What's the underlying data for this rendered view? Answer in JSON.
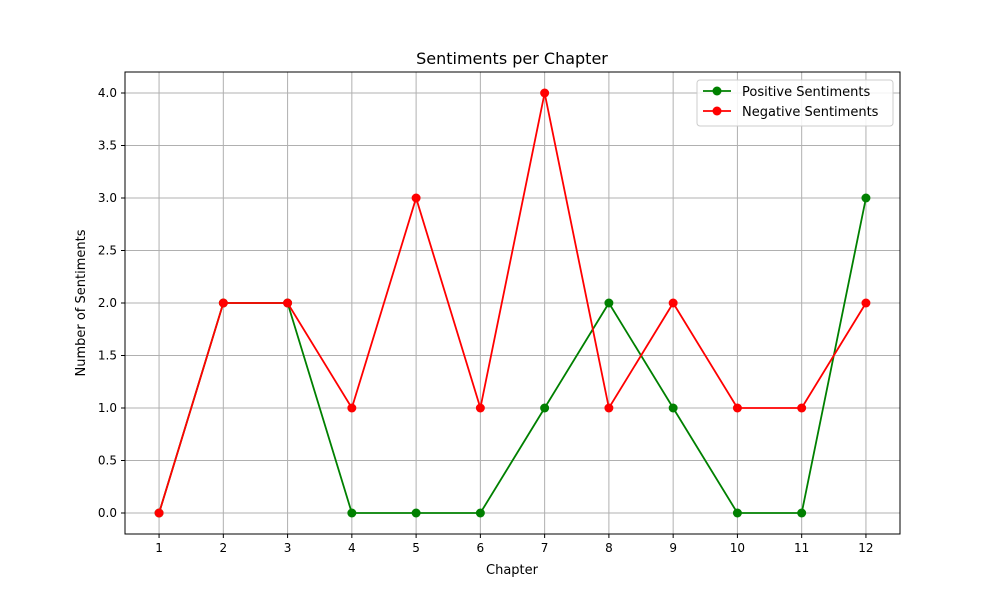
{
  "chart_data": {
    "type": "line",
    "title": "Sentiments per Chapter",
    "xlabel": "Chapter",
    "ylabel": "Number of Sentiments",
    "x": [
      1,
      2,
      3,
      4,
      5,
      6,
      7,
      8,
      9,
      10,
      11,
      12
    ],
    "xticks": [
      "1",
      "2",
      "3",
      "4",
      "5",
      "6",
      "7",
      "8",
      "9",
      "10",
      "11",
      "12"
    ],
    "yticks": [
      "0.0",
      "0.5",
      "1.0",
      "1.5",
      "2.0",
      "2.5",
      "3.0",
      "3.5",
      "4.0"
    ],
    "xlim": [
      0.47,
      12.53
    ],
    "ylim": [
      -0.2,
      4.2
    ],
    "grid": true,
    "legend_position": "top-right",
    "series": [
      {
        "name": "Positive Sentiments",
        "color": "#008000",
        "values": [
          0,
          2,
          2,
          0,
          0,
          0,
          1,
          2,
          1,
          0,
          0,
          3
        ]
      },
      {
        "name": "Negative Sentiments",
        "color": "#ff0000",
        "values": [
          0,
          2,
          2,
          1,
          3,
          1,
          4,
          1,
          2,
          1,
          1,
          2
        ]
      }
    ]
  }
}
